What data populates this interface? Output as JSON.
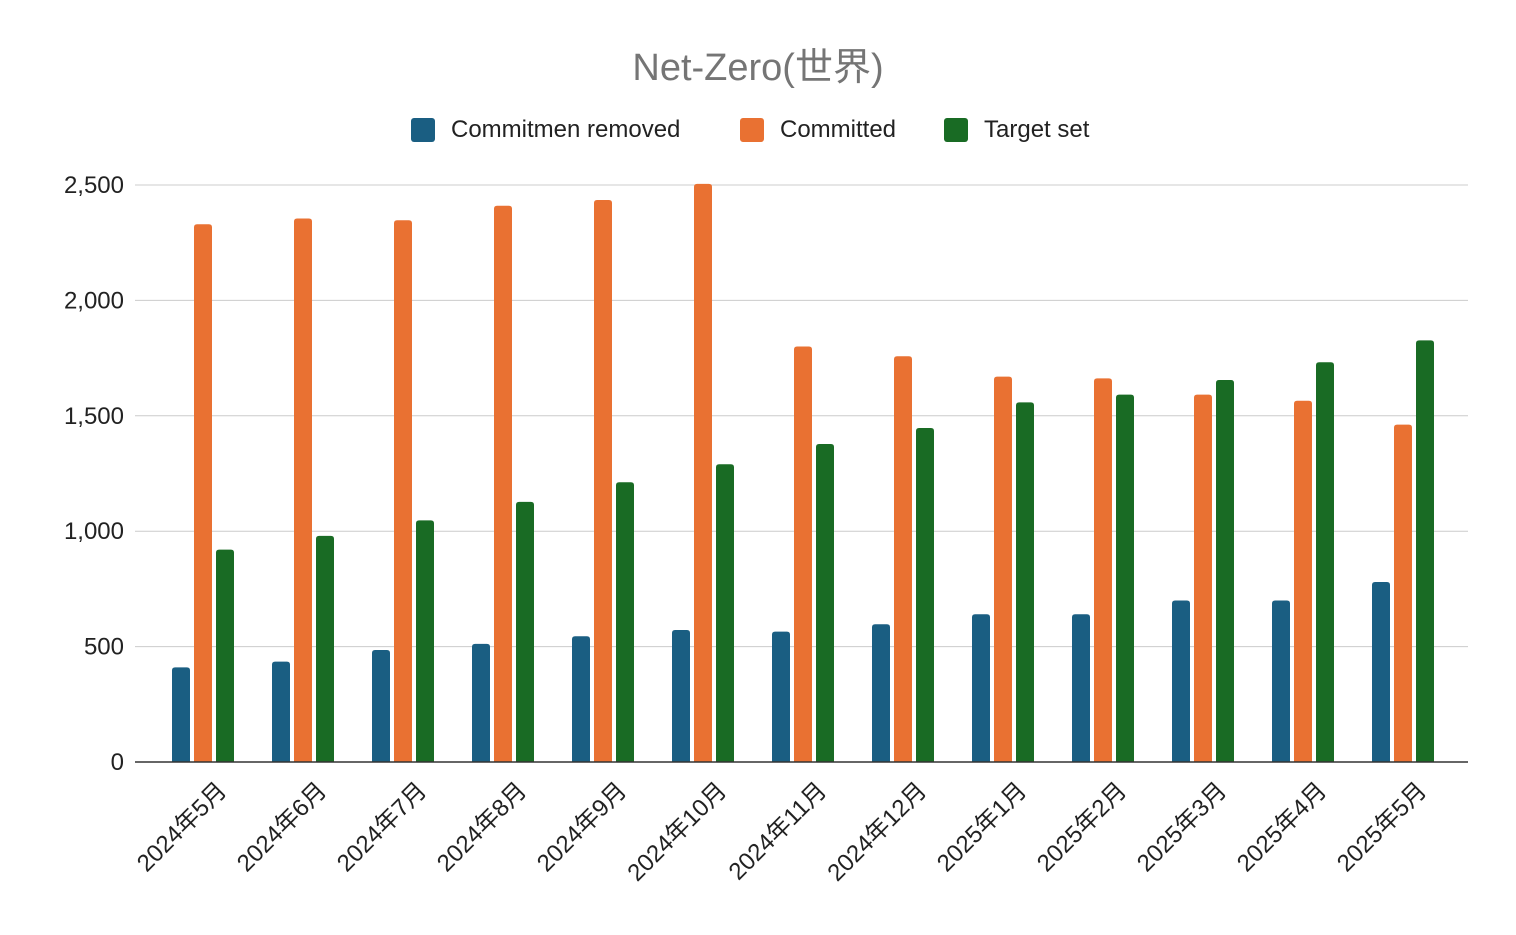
{
  "chart_data": {
    "type": "bar",
    "title": "Net-Zero(世界)",
    "xlabel": "",
    "ylabel": "",
    "ylim": [
      0,
      2500
    ],
    "yticks": [
      0,
      500,
      1000,
      1500,
      2000,
      2500
    ],
    "ytick_labels": [
      "0",
      "500",
      "1,000",
      "1,500",
      "2,000",
      "2,500"
    ],
    "grid": true,
    "legend_position": "top",
    "categories": [
      "2024年5月",
      "2024年6月",
      "2024年7月",
      "2024年8月",
      "2024年9月",
      "2024年10月",
      "2024年11月",
      "2024年12月",
      "2025年1月",
      "2025年2月",
      "2025年3月",
      "2025年4月",
      "2025年5月"
    ],
    "series": [
      {
        "name": "Commitmen removed",
        "color": "#1a5e82",
        "values": [
          410,
          435,
          485,
          512,
          545,
          572,
          565,
          597,
          640,
          640,
          700,
          700,
          780
        ]
      },
      {
        "name": "Committed",
        "color": "#e97132",
        "values": [
          2330,
          2355,
          2347,
          2410,
          2435,
          2505,
          1800,
          1758,
          1670,
          1662,
          1592,
          1565,
          1462
        ]
      },
      {
        "name": "Target set",
        "color": "#196b24",
        "values": [
          920,
          980,
          1047,
          1127,
          1212,
          1290,
          1378,
          1447,
          1558,
          1592,
          1655,
          1732,
          1827
        ]
      }
    ]
  }
}
